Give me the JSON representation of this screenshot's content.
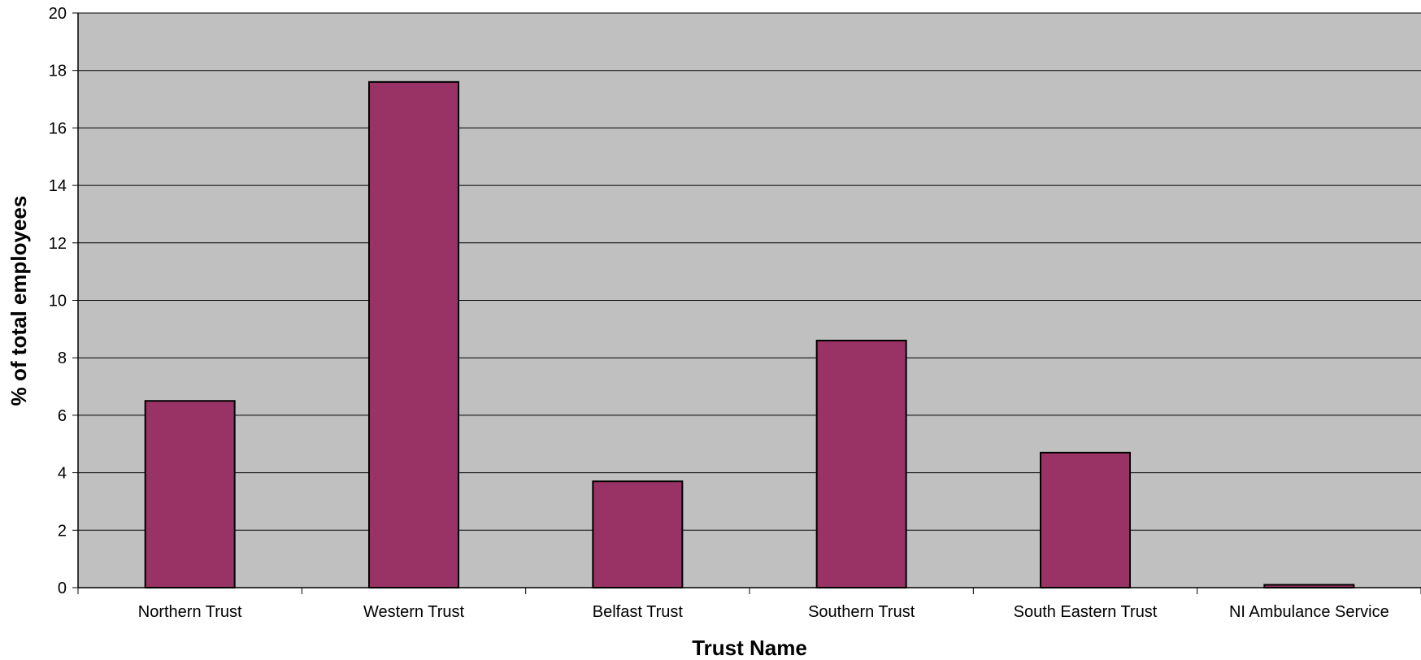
{
  "chart_data": {
    "type": "bar",
    "title": "",
    "xlabel": "Trust Name",
    "ylabel": "% of total employees",
    "categories": [
      "Northern Trust",
      "Western Trust",
      "Belfast Trust",
      "Southern Trust",
      "South Eastern Trust",
      "NI Ambulance Service"
    ],
    "values": [
      6.5,
      17.6,
      3.7,
      8.6,
      4.7,
      0.1
    ],
    "ylim": [
      0,
      20
    ],
    "yticks": [
      0,
      2,
      4,
      6,
      8,
      10,
      12,
      14,
      16,
      18,
      20
    ],
    "grid": true,
    "legend": "none",
    "colors": {
      "bar": "#993366",
      "plot_background": "#c0c0c0",
      "gridline": "#000000"
    }
  }
}
